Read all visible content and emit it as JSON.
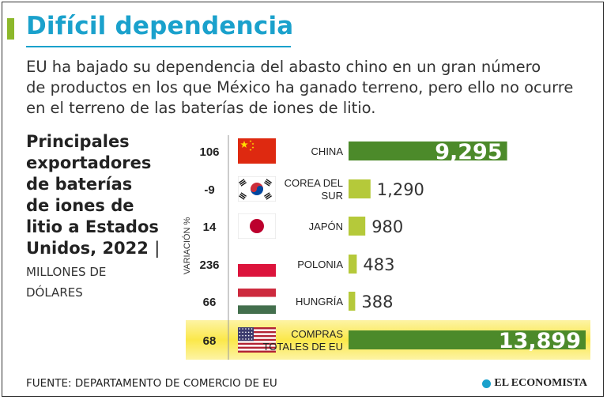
{
  "header": {
    "title": "Difícil dependencia",
    "subtitle_lines": [
      "EU ha bajado su dependencia del abasto chino en un gran número",
      "de productos en los que México ha ganado terreno, pero ello no ocurre",
      "en el terreno de las baterías de iones de litio."
    ]
  },
  "chart_heading": {
    "lines": [
      "Principales",
      "exportadores",
      "de baterías",
      "de iones de",
      "litio a Estados",
      "Unidos, 2022"
    ],
    "separator": "|",
    "units_lines": [
      "MILLONES DE",
      "DÓLARES"
    ]
  },
  "chart_data": {
    "type": "bar",
    "orientation": "horizontal",
    "title": "Principales exportadores de baterías de iones de litio a Estados Unidos, 2022",
    "units": "MILLONES DE DÓLARES",
    "variation_axis_label": "VARIACIÓN %",
    "categories": [
      "CHINA",
      "COREA DEL SUR",
      "JAPÓN",
      "POLONIA",
      "HUNGRÍA",
      "COMPRAS TOTALES DE EU"
    ],
    "category_lines": [
      [
        "CHINA"
      ],
      [
        "COREA DEL",
        "SUR"
      ],
      [
        "JAPÓN"
      ],
      [
        "POLONIA"
      ],
      [
        "HUNGRÍA"
      ],
      [
        "COMPRAS",
        "TOTALES DE EU"
      ]
    ],
    "values": [
      9295,
      1290,
      980,
      483,
      388,
      13899
    ],
    "value_labels": [
      "9,295",
      "1,290",
      "980",
      "483",
      "388",
      "13,899"
    ],
    "variation": [
      "106",
      "-9",
      "14",
      "236",
      "66",
      "68"
    ],
    "flags": [
      "china-flag",
      "south-korea-flag",
      "japan-flag",
      "poland-flag",
      "hungary-flag",
      "usa-flag"
    ],
    "highlight_category": "COMPRAS TOTALES DE EU",
    "xlim": [
      0,
      13899
    ]
  },
  "colors": {
    "title": "#1aa1cc",
    "accent": "#8cb82b",
    "bar_large": "#4c8a2a",
    "bar_small": "#b5c93a",
    "highlight": "#fbe84a"
  },
  "footer": {
    "source": "FUENTE: DEPARTAMENTO DE COMERCIO DE EU",
    "brand": "EL ECONOMISTA"
  }
}
